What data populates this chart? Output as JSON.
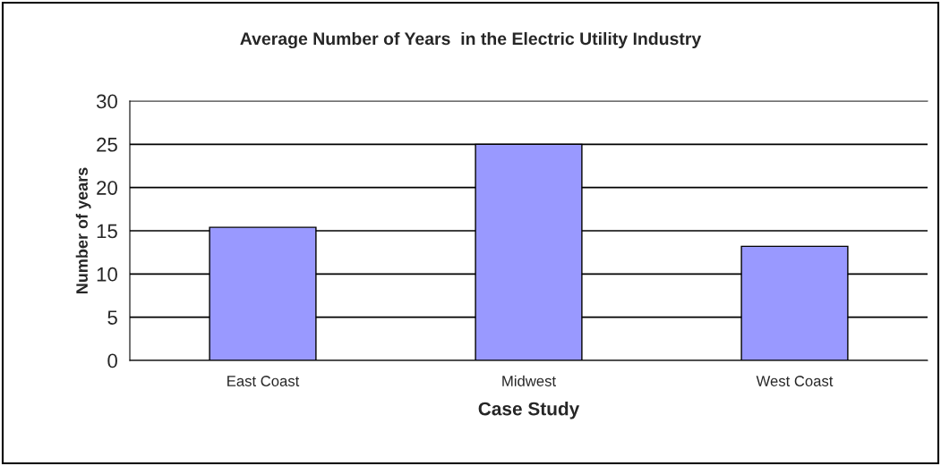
{
  "chart_data": {
    "type": "bar",
    "title": "Average Number of Years  in the Electric Utility Industry",
    "xlabel": "Case Study",
    "ylabel": "Number of years",
    "categories": [
      "East Coast",
      "Midwest",
      "West Coast"
    ],
    "values": [
      15.4,
      25,
      13.2
    ],
    "color": "#9999ff",
    "ylim": [
      0,
      30
    ],
    "yticks": [
      0,
      5,
      10,
      15,
      20,
      25,
      30
    ],
    "grid": "y",
    "legend": false
  }
}
